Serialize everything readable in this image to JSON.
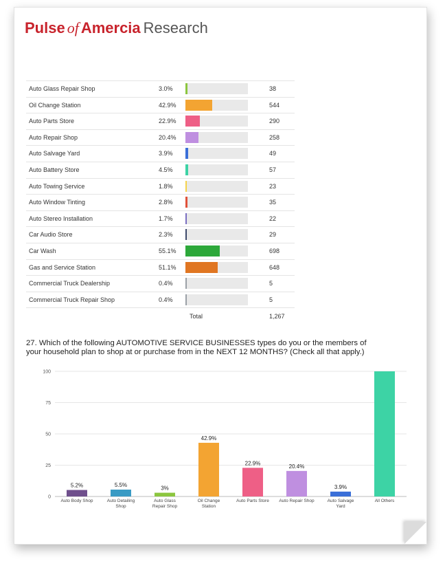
{
  "brand": {
    "part1": "Pulse",
    "part2": "of",
    "part3": "Amercia",
    "part4": "Research"
  },
  "table": {
    "rows": [
      {
        "name": "Auto Glass Repair Shop",
        "pct": "3.0%",
        "value": 3.0,
        "count": "38",
        "color": "#8cc63f"
      },
      {
        "name": "Oil Change Station",
        "pct": "42.9%",
        "value": 42.9,
        "count": "544",
        "color": "#f3a432"
      },
      {
        "name": "Auto Parts Store",
        "pct": "22.9%",
        "value": 22.9,
        "count": "290",
        "color": "#ee5f86"
      },
      {
        "name": "Auto Repair Shop",
        "pct": "20.4%",
        "value": 20.4,
        "count": "258",
        "color": "#bf8fe0"
      },
      {
        "name": "Auto Salvage Yard",
        "pct": "3.9%",
        "value": 3.9,
        "count": "49",
        "color": "#3a6fd8"
      },
      {
        "name": "Auto Battery Store",
        "pct": "4.5%",
        "value": 4.5,
        "count": "57",
        "color": "#3dd3a5"
      },
      {
        "name": "Auto Towing Service",
        "pct": "1.8%",
        "value": 1.8,
        "count": "23",
        "color": "#f5d34a"
      },
      {
        "name": "Auto Window Tinting",
        "pct": "2.8%",
        "value": 2.8,
        "count": "35",
        "color": "#e0513a"
      },
      {
        "name": "Auto Stereo Installation",
        "pct": "1.7%",
        "value": 1.7,
        "count": "22",
        "color": "#7a6fc2"
      },
      {
        "name": "Car Audio Store",
        "pct": "2.3%",
        "value": 2.3,
        "count": "29",
        "color": "#3d4a6b"
      },
      {
        "name": "Car Wash",
        "pct": "55.1%",
        "value": 55.1,
        "count": "698",
        "color": "#2da83a"
      },
      {
        "name": "Gas and Service Station",
        "pct": "51.1%",
        "value": 51.1,
        "count": "648",
        "color": "#e07622"
      },
      {
        "name": "Commercial Truck Dealership",
        "pct": "0.4%",
        "value": 0.4,
        "count": "5",
        "color": "#9aa0a6"
      },
      {
        "name": "Commercial Truck Repair Shop",
        "pct": "0.4%",
        "value": 0.4,
        "count": "5",
        "color": "#9aa0a6"
      }
    ],
    "total_label": "Total",
    "total_value": "1,267"
  },
  "question": "27. Which of the following AUTOMOTIVE SERVICE BUSINESSES types do you or the members of your household plan to shop at or purchase from in the NEXT 12 MONTHS? (Check all that apply.)",
  "chart_data": {
    "type": "bar",
    "categories": [
      [
        "Auto Body Shop"
      ],
      [
        "Auto Detailing",
        "Shop"
      ],
      [
        "Auto Glass",
        "Repair Shop"
      ],
      [
        "Oil Change",
        "Station"
      ],
      [
        "Auto Parts Store"
      ],
      [
        "Auto Repair Shop"
      ],
      [
        "Auto Salvage",
        "Yard"
      ],
      [
        "All Others"
      ]
    ],
    "values": [
      5.2,
      5.5,
      3,
      42.9,
      22.9,
      20.4,
      3.9,
      100
    ],
    "data_labels": [
      "5.2%",
      "5.5%",
      "3%",
      "42.9%",
      "22.9%",
      "20.4%",
      "3.9%",
      ""
    ],
    "colors": [
      "#6f4f8c",
      "#3a9bc4",
      "#8cc63f",
      "#f3a432",
      "#ee5f86",
      "#bf8fe0",
      "#3a6fd8",
      "#3dd3a5"
    ],
    "yticks": [
      "0",
      "25",
      "50",
      "75",
      "100"
    ],
    "ylim": [
      0,
      100
    ],
    "grid": true
  }
}
